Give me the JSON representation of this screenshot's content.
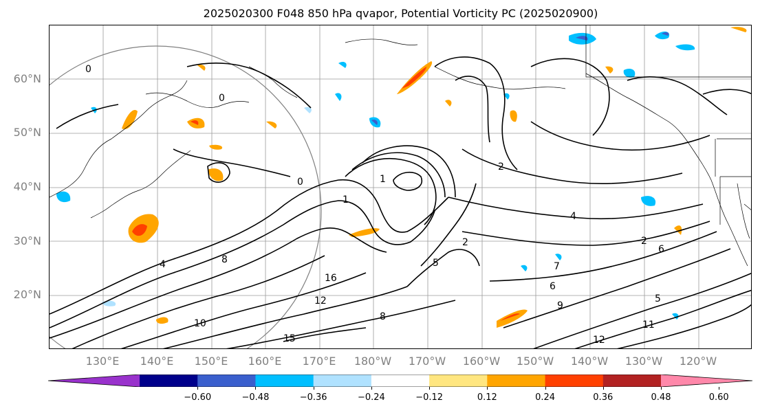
{
  "title": "2025020300 F048 850 hPa qvapor, Potential Vorticity PC (2025020900)",
  "lat_labels": [
    "60°N",
    "50°N",
    "40°N",
    "30°N",
    "20°N"
  ],
  "lon_labels": [
    "130°E",
    "140°E",
    "150°E",
    "160°E",
    "170°E",
    "180°W",
    "170°W",
    "160°W",
    "150°W",
    "140°W",
    "130°W",
    "120°W"
  ],
  "colorbar": {
    "ticks": [
      "−0.60",
      "−0.48",
      "−0.36",
      "−0.24",
      "−0.12",
      "0.12",
      "0.24",
      "0.36",
      "0.48",
      "0.60"
    ],
    "colors": [
      "#9932cc",
      "#00008b",
      "#3a5fcd",
      "#00bfff",
      "#b0e2ff",
      "#ffffff",
      "#ffe680",
      "#ffa500",
      "#ff4000",
      "#b22222",
      "#ff88aa"
    ],
    "extend": "both"
  },
  "contour_labels": [
    "0",
    "0",
    "0",
    "1",
    "1",
    "2",
    "2",
    "2",
    "4",
    "4",
    "5",
    "5",
    "6",
    "6",
    "7",
    "8",
    "8",
    "9",
    "10",
    "11",
    "12",
    "12",
    "15",
    "16"
  ],
  "colors": {
    "contour": "#000000",
    "coast": "#000000",
    "grid": "#9a9a9a",
    "circle": "#808080",
    "tick_label": "#808080"
  }
}
